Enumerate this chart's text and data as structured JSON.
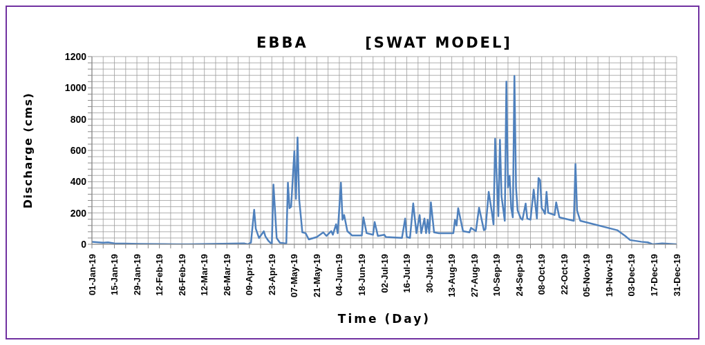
{
  "chart_data": {
    "type": "line",
    "title": "EBBA        [SWAT MODEL]",
    "xlabel": "Time (Day)",
    "ylabel": "Discharge (cms)",
    "x": [
      "--01-01",
      "--01-08",
      "--01-11",
      "--01-15",
      "--01-21",
      "--01-31",
      "--02-15",
      "--03-02",
      "--04-06",
      "--04-08",
      "--04-10",
      "--04-12",
      "--04-13",
      "--04-15",
      "--04-18",
      "--04-19",
      "--04-21",
      "--04-23",
      "--04-24",
      "--04-26",
      "--04-28",
      "--05-02",
      "--05-03",
      "--05-04",
      "--05-05",
      "--05-07",
      "--05-08",
      "--05-09",
      "--05-10",
      "--05-12",
      "--05-14",
      "--05-16",
      "--05-21",
      "--05-25",
      "--05-27",
      "--05-30",
      "--05-31",
      "--06-02",
      "--06-03",
      "--06-05",
      "--06-06",
      "--06-07",
      "--06-09",
      "--06-12",
      "--06-18",
      "--06-19",
      "--06-21",
      "--06-25",
      "--06-26",
      "--06-28",
      "--07-02",
      "--07-03",
      "--07-13",
      "--07-15",
      "--07-16",
      "--07-18",
      "--07-20",
      "--07-22",
      "--07-24",
      "--07-25",
      "--07-27",
      "--07-28",
      "--07-29",
      "--07-30",
      "--07-31",
      "--08-02",
      "--08-05",
      "--08-14",
      "--08-15",
      "--08-16",
      "--08-17",
      "--08-20",
      "--08-24",
      "--08-25",
      "--08-28",
      "--08-30",
      "--09-02",
      "--09-03",
      "--09-05",
      "--09-07",
      "--09-08",
      "--09-09",
      "--09-11",
      "--09-12",
      "--09-13",
      "--09-15",
      "--09-16",
      "--09-17",
      "--09-18",
      "--09-19",
      "--09-20",
      "--09-21",
      "--09-22",
      "--09-23",
      "--09-25",
      "--09-26",
      "--09-28",
      "--09-29",
      "--10-01",
      "--10-03",
      "--10-05",
      "--10-06",
      "--10-07",
      "--10-08",
      "--10-09",
      "--10-10",
      "--10-11",
      "--10-12",
      "--10-16",
      "--10-17",
      "--10-19",
      "--10-28",
      "--10-29",
      "--10-30",
      "--11-01",
      "--11-04",
      "--11-24",
      "--11-29",
      "--12-02",
      "--12-09",
      "--12-13",
      "--12-16",
      "--12-22",
      "--12-31"
    ],
    "series": [
      {
        "color": "#4f81bd",
        "values": [
          16,
          10,
          12,
          6,
          4,
          2,
          1,
          0,
          5,
          0,
          10,
          221,
          100,
          40,
          83,
          50,
          20,
          0,
          382,
          40,
          10,
          5,
          394,
          231,
          240,
          594,
          290,
          683,
          290,
          76,
          71,
          31,
          46,
          76,
          53,
          84,
          61,
          128,
          71,
          394,
          157,
          187,
          84,
          56,
          56,
          172,
          71,
          61,
          142,
          53,
          61,
          46,
          41,
          164,
          46,
          41,
          261,
          71,
          187,
          71,
          164,
          71,
          157,
          71,
          268,
          76,
          71,
          71,
          157,
          120,
          231,
          84,
          76,
          105,
          84,
          234,
          90,
          97,
          335,
          202,
          127,
          675,
          180,
          668,
          305,
          150,
          1040,
          364,
          438,
          231,
          172,
          1076,
          364,
          216,
          164,
          157,
          260,
          164,
          157,
          350,
          164,
          424,
          409,
          231,
          216,
          194,
          335,
          202,
          187,
          268,
          172,
          150,
          513,
          216,
          150,
          142,
          90,
          53,
          27,
          16,
          12,
          0,
          6,
          0
        ]
      }
    ],
    "xlim": [
      "--01-01",
      "--12-31"
    ],
    "xticks": [
      {
        "value": "--01-01",
        "label": "01-Jan-19"
      },
      {
        "value": "--01-08",
        "label": null
      },
      {
        "value": "--01-15",
        "label": "15-Jan-19"
      },
      {
        "value": "--01-22",
        "label": null
      },
      {
        "value": "--01-29",
        "label": "29-Jan-19"
      },
      {
        "value": "--02-05",
        "label": null
      },
      {
        "value": "--02-12",
        "label": "12-Feb-19"
      },
      {
        "value": "--02-19",
        "label": null
      },
      {
        "value": "--02-26",
        "label": "26-Feb-19"
      },
      {
        "value": "--03-05",
        "label": null
      },
      {
        "value": "--03-12",
        "label": "12-Mar-19"
      },
      {
        "value": "--03-19",
        "label": null
      },
      {
        "value": "--03-26",
        "label": "26-Mar-19"
      },
      {
        "value": "--04-02",
        "label": null
      },
      {
        "value": "--04-09",
        "label": "09-Apr-19"
      },
      {
        "value": "--04-16",
        "label": null
      },
      {
        "value": "--04-23",
        "label": "23-Apr-19"
      },
      {
        "value": "--04-30",
        "label": null
      },
      {
        "value": "--05-07",
        "label": "07-May-19"
      },
      {
        "value": "--05-14",
        "label": null
      },
      {
        "value": "--05-21",
        "label": "21-May-19"
      },
      {
        "value": "--05-28",
        "label": null
      },
      {
        "value": "--06-04",
        "label": "04-Jun-19"
      },
      {
        "value": "--06-11",
        "label": null
      },
      {
        "value": "--06-18",
        "label": "18-Jun-19"
      },
      {
        "value": "--06-25",
        "label": null
      },
      {
        "value": "--07-02",
        "label": "02-Jul-19"
      },
      {
        "value": "--07-09",
        "label": null
      },
      {
        "value": "--07-16",
        "label": "16-Jul-19"
      },
      {
        "value": "--07-23",
        "label": null
      },
      {
        "value": "--07-30",
        "label": "30-Jul-19"
      },
      {
        "value": "--08-06",
        "label": null
      },
      {
        "value": "--08-13",
        "label": "13-Aug-19"
      },
      {
        "value": "--08-20",
        "label": null
      },
      {
        "value": "--08-27",
        "label": "27-Aug-19"
      },
      {
        "value": "--09-03",
        "label": null
      },
      {
        "value": "--09-10",
        "label": "10-Sep-19"
      },
      {
        "value": "--09-17",
        "label": null
      },
      {
        "value": "--09-24",
        "label": "24-Sep-19"
      },
      {
        "value": "--10-01",
        "label": null
      },
      {
        "value": "--10-08",
        "label": "08-Oct-19"
      },
      {
        "value": "--10-15",
        "label": null
      },
      {
        "value": "--10-22",
        "label": "22-Oct-19"
      },
      {
        "value": "--10-29",
        "label": null
      },
      {
        "value": "--11-05",
        "label": "05-Nov-19"
      },
      {
        "value": "--11-12",
        "label": null
      },
      {
        "value": "--11-19",
        "label": "19-Nov-19"
      },
      {
        "value": "--11-26",
        "label": null
      },
      {
        "value": "--12-03",
        "label": "03-Dec-19"
      },
      {
        "value": "--12-10",
        "label": null
      },
      {
        "value": "--12-17",
        "label": "17-Dec-19"
      },
      {
        "value": "--12-24",
        "label": null
      },
      {
        "value": "--12-31",
        "label": "31-Dec-19"
      }
    ],
    "ylim": [
      0,
      1200
    ],
    "yticks": [
      0,
      {
        "value": 40,
        "label": null
      },
      {
        "value": 80,
        "label": null
      },
      {
        "value": 120,
        "label": null
      },
      {
        "value": 160,
        "label": null
      },
      200,
      {
        "value": 240,
        "label": null
      },
      {
        "value": 280,
        "label": null
      },
      {
        "value": 320,
        "label": null
      },
      {
        "value": 360,
        "label": null
      },
      400,
      {
        "value": 440,
        "label": null
      },
      {
        "value": 480,
        "label": null
      },
      {
        "value": 520,
        "label": null
      },
      {
        "value": 560,
        "label": null
      },
      600,
      {
        "value": 640,
        "label": null
      },
      {
        "value": 680,
        "label": null
      },
      {
        "value": 720,
        "label": null
      },
      {
        "value": 760,
        "label": null
      },
      800,
      {
        "value": 840,
        "label": null
      },
      {
        "value": 880,
        "label": null
      },
      {
        "value": 920,
        "label": null
      },
      {
        "value": 960,
        "label": null
      },
      1000,
      {
        "value": 1040,
        "label": null
      },
      {
        "value": 1080,
        "label": null
      },
      {
        "value": 1120,
        "label": null
      },
      {
        "value": 1160,
        "label": null
      },
      1200
    ],
    "grid": true,
    "marker": "none",
    "line_style": "solid"
  }
}
